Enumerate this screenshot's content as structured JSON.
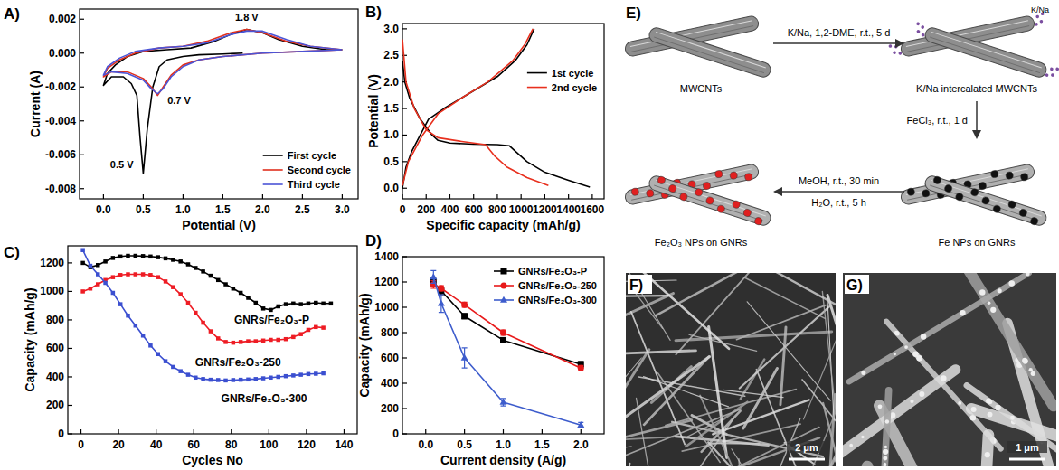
{
  "chart_data": [
    {
      "type": "line",
      "title": "A)",
      "x_label": "Potential (V)",
      "y_label": "Current (A)",
      "xlim": [
        -0.3,
        3.2
      ],
      "ylim": [
        -0.0086,
        0.0026
      ],
      "xticks": [
        {
          "value": 0,
          "label": "0.0"
        },
        0.5,
        {
          "value": 1,
          "label": "1.0"
        },
        1.5,
        {
          "value": 2,
          "label": "2.0"
        },
        2.5,
        {
          "value": 3,
          "label": "3.0"
        }
      ],
      "yticks": [
        0.002,
        {
          "value": 0,
          "label": "0.000"
        },
        -0.002,
        -0.004,
        -0.006,
        -0.008
      ],
      "grid": false,
      "legend": "lower right",
      "series": [
        {
          "name": "First cycle",
          "color": "#000000",
          "x": [
            1.75,
            1.5,
            1.2,
            1.0,
            0.8,
            0.7,
            0.62,
            0.55,
            0.5,
            0.46,
            0.42,
            0.35,
            0.25,
            0.1,
            0.0,
            0.05,
            0.15,
            0.3,
            0.5,
            0.8,
            1.1,
            1.4,
            1.6,
            1.8,
            2.0,
            2.2,
            2.5,
            2.8,
            3.0
          ],
          "values": [
            0.0,
            -5e-05,
            -0.0001,
            -0.0002,
            -0.0004,
            -0.0008,
            -0.002,
            -0.0045,
            -0.0071,
            -0.005,
            -0.0025,
            -0.0018,
            -0.0014,
            -0.0014,
            -0.0019,
            -0.0012,
            -0.0007,
            -0.0002,
            0.0001,
            0.0002,
            0.0003,
            0.0007,
            0.0011,
            0.0014,
            0.0012,
            0.0008,
            0.0004,
            0.0002,
            0.0002
          ]
        },
        {
          "name": "Second cycle",
          "color": "#e0301e",
          "x": [
            3.0,
            2.5,
            2.0,
            1.5,
            1.2,
            1.0,
            0.85,
            0.75,
            0.68,
            0.6,
            0.5,
            0.3,
            0.1,
            0.0,
            0.05,
            0.2,
            0.4,
            0.7,
            1.0,
            1.3,
            1.6,
            1.8,
            2.0,
            2.3,
            2.6,
            3.0
          ],
          "values": [
            0.0002,
            0.0001,
            0.0,
            -0.0002,
            -0.0004,
            -0.0007,
            -0.0013,
            -0.002,
            -0.0025,
            -0.002,
            -0.0015,
            -0.0011,
            -0.0011,
            -0.0014,
            -0.0009,
            -0.0004,
            0.0,
            0.0003,
            0.0004,
            0.0007,
            0.0012,
            0.0014,
            0.0012,
            0.0007,
            0.0004,
            0.0002
          ]
        },
        {
          "name": "Third cycle",
          "color": "#4b54d6",
          "x": [
            3.0,
            2.5,
            2.0,
            1.5,
            1.2,
            1.0,
            0.85,
            0.75,
            0.68,
            0.6,
            0.5,
            0.3,
            0.1,
            0.0,
            0.05,
            0.2,
            0.4,
            0.7,
            1.0,
            1.3,
            1.6,
            1.8,
            2.0,
            2.3,
            2.6,
            3.0
          ],
          "values": [
            0.0002,
            0.0001,
            0.0,
            -0.0002,
            -0.0004,
            -0.0008,
            -0.0014,
            -0.0021,
            -0.0024,
            -0.0021,
            -0.0016,
            -0.0012,
            -0.0011,
            -0.0013,
            -0.0008,
            -0.0003,
            0.0001,
            0.0003,
            0.0004,
            0.0006,
            0.0011,
            0.0013,
            0.0013,
            0.0008,
            0.0004,
            0.0002
          ]
        }
      ],
      "annotations": [
        {
          "text": "1.8 V",
          "x": 1.8,
          "y": 0.0019
        },
        {
          "text": "0.7 V",
          "x": 0.95,
          "y": -0.003
        },
        {
          "text": "0.5 V",
          "x": 0.23,
          "y": -0.0068
        }
      ]
    },
    {
      "type": "line",
      "title": "B)",
      "x_label": "Specific capacity (mAh/g)",
      "y_label": "Potential (V)",
      "xlim": [
        0,
        1700
      ],
      "ylim": [
        -0.2,
        3.1
      ],
      "xticks": [
        0,
        200,
        400,
        600,
        800,
        1000,
        1200,
        1400,
        1600
      ],
      "yticks": [
        {
          "value": 0,
          "label": "0.0"
        },
        0.5,
        {
          "value": 1,
          "label": "1.0"
        },
        1.5,
        {
          "value": 2,
          "label": "2.0"
        },
        2.5,
        {
          "value": 3,
          "label": "3.0"
        }
      ],
      "grid": false,
      "legend": "right",
      "series": [
        {
          "name": "1st cycle",
          "color": "#000000",
          "x": [
            0,
            20,
            60,
            150,
            250,
            300,
            400,
            600,
            800,
            900,
            950,
            1050,
            1200,
            1400,
            1580,
            null,
            0,
            30,
            80,
            150,
            220,
            350,
            500,
            650,
            800,
            950,
            1050,
            1110
          ],
          "values": [
            2.4,
            2.0,
            1.7,
            1.3,
            1.0,
            0.9,
            0.85,
            0.83,
            0.82,
            0.8,
            0.7,
            0.5,
            0.3,
            0.15,
            0.02,
            null,
            0.0,
            0.4,
            0.7,
            1.0,
            1.3,
            1.5,
            1.7,
            1.9,
            2.1,
            2.4,
            2.7,
            3.0
          ]
        },
        {
          "name": "2nd cycle",
          "color": "#e8301e",
          "x": [
            0,
            30,
            100,
            200,
            300,
            500,
            700,
            780,
            880,
            1050,
            1230,
            null,
            0,
            50,
            170,
            300,
            500,
            720,
            930,
            1030,
            1100
          ],
          "values": [
            2.8,
            2.0,
            1.5,
            1.1,
            0.95,
            0.88,
            0.82,
            0.6,
            0.4,
            0.2,
            0.05,
            null,
            0.05,
            0.5,
            1.0,
            1.4,
            1.7,
            2.0,
            2.4,
            2.7,
            3.0
          ]
        }
      ]
    },
    {
      "type": "line",
      "title": "C)",
      "x_label": "Cycles No",
      "y_label": "Capacity (mAh/g)",
      "xlim": [
        -7,
        147
      ],
      "ylim": [
        0,
        1320
      ],
      "xticks": [
        0,
        20,
        40,
        60,
        80,
        100,
        120,
        140
      ],
      "yticks": [
        0,
        200,
        400,
        600,
        800,
        1000,
        1200
      ],
      "grid": false,
      "legend": "inline",
      "series": [
        {
          "name": "GNRs/Fe₂O₃-P",
          "color": "#000000",
          "marker": "square",
          "x": [
            1,
            5,
            9,
            13,
            17,
            21,
            25,
            29,
            33,
            37,
            41,
            45,
            49,
            53,
            57,
            61,
            65,
            69,
            73,
            77,
            81,
            85,
            89,
            93,
            97,
            101,
            105,
            109,
            113,
            117,
            121,
            125,
            129,
            133
          ],
          "values": [
            1200,
            1170,
            1185,
            1210,
            1235,
            1245,
            1250,
            1250,
            1248,
            1245,
            1240,
            1232,
            1222,
            1210,
            1190,
            1165,
            1140,
            1110,
            1080,
            1050,
            1020,
            990,
            955,
            920,
            880,
            870,
            895,
            910,
            915,
            910,
            915,
            920,
            915,
            915
          ]
        },
        {
          "name": "GNRs/Fe₂O₃-250",
          "color": "#ee1c24",
          "marker": "square",
          "x": [
            1,
            5,
            9,
            13,
            17,
            21,
            25,
            29,
            33,
            37,
            41,
            45,
            49,
            53,
            57,
            61,
            65,
            69,
            73,
            77,
            81,
            85,
            89,
            93,
            97,
            101,
            105,
            109,
            113,
            117,
            121,
            125,
            129
          ],
          "values": [
            1000,
            1020,
            1050,
            1080,
            1100,
            1115,
            1120,
            1120,
            1120,
            1115,
            1100,
            1070,
            1030,
            980,
            920,
            850,
            780,
            720,
            670,
            645,
            640,
            645,
            650,
            650,
            655,
            660,
            660,
            665,
            680,
            700,
            730,
            750,
            745
          ]
        },
        {
          "name": "GNRs/Fe₂O₃-300",
          "color": "#3b4fd0",
          "marker": "square",
          "x": [
            1,
            5,
            9,
            13,
            17,
            21,
            25,
            29,
            33,
            37,
            41,
            45,
            49,
            53,
            57,
            61,
            65,
            69,
            73,
            77,
            81,
            85,
            89,
            93,
            97,
            101,
            105,
            109,
            113,
            117,
            121,
            125,
            129
          ],
          "values": [
            1290,
            1180,
            1120,
            1060,
            990,
            910,
            830,
            760,
            690,
            620,
            560,
            510,
            470,
            440,
            415,
            395,
            385,
            380,
            378,
            375,
            378,
            380,
            382,
            385,
            390,
            395,
            400,
            405,
            410,
            415,
            420,
            422,
            425
          ]
        }
      ]
    },
    {
      "type": "line",
      "title": "D)",
      "x_label": "Current density (A/g)",
      "y_label": "Capacity (mAh/g)",
      "xlim": [
        -0.3,
        2.3
      ],
      "ylim": [
        0,
        1400
      ],
      "xticks": [
        {
          "value": 0,
          "label": "0.0"
        },
        0.5,
        {
          "value": 1,
          "label": "1.0"
        },
        1.5,
        {
          "value": 2,
          "label": "2.0"
        }
      ],
      "yticks": [
        0,
        200,
        400,
        600,
        800,
        1000,
        1200,
        1400
      ],
      "grid": false,
      "legend": "upper right",
      "x": [
        0.1,
        0.2,
        0.5,
        1.0,
        2.0
      ],
      "series": [
        {
          "name": "GNRs/Fe₂O₃-P",
          "color": "#000000",
          "marker": "square",
          "values": [
            1200,
            1130,
            930,
            740,
            550
          ],
          "errors": [
            30,
            30,
            20,
            20,
            20
          ]
        },
        {
          "name": "GNRs/Fe₂O₃-250",
          "color": "#e8191a",
          "marker": "circle",
          "values": [
            1180,
            1150,
            1020,
            800,
            520
          ],
          "errors": [
            30,
            20,
            20,
            20,
            20
          ]
        },
        {
          "name": "GNRs/Fe₂O₃-300",
          "color": "#3d5ccc",
          "marker": "triangle",
          "values": [
            1240,
            1030,
            600,
            250,
            70
          ],
          "errors": [
            50,
            70,
            80,
            30,
            20
          ]
        }
      ]
    }
  ],
  "diagram": {
    "title": "E)",
    "nodes": [
      {
        "label": "MWCNTs"
      },
      {
        "label": "K/Na intercalated MWCNTs",
        "tag": "K/Na"
      },
      {
        "label": "Fe NPs on GNRs"
      },
      {
        "label": "Fe₂O₃ NPs on GNRs"
      }
    ],
    "edges": [
      {
        "from": 0,
        "to": 1,
        "labels": [
          "K/Na, 1,2-DME, r.t., 5 d"
        ]
      },
      {
        "from": 1,
        "to": 2,
        "labels": [
          "FeCl₃, r.t., 1 d"
        ]
      },
      {
        "from": 2,
        "to": 3,
        "labels": [
          "MeOH, r.t., 30 min",
          "H₂O, r.t., 5 h"
        ]
      }
    ]
  },
  "images": [
    {
      "title": "F)",
      "scale_bar": "2 μm"
    },
    {
      "title": "G)",
      "scale_bar": "1 μm"
    }
  ]
}
